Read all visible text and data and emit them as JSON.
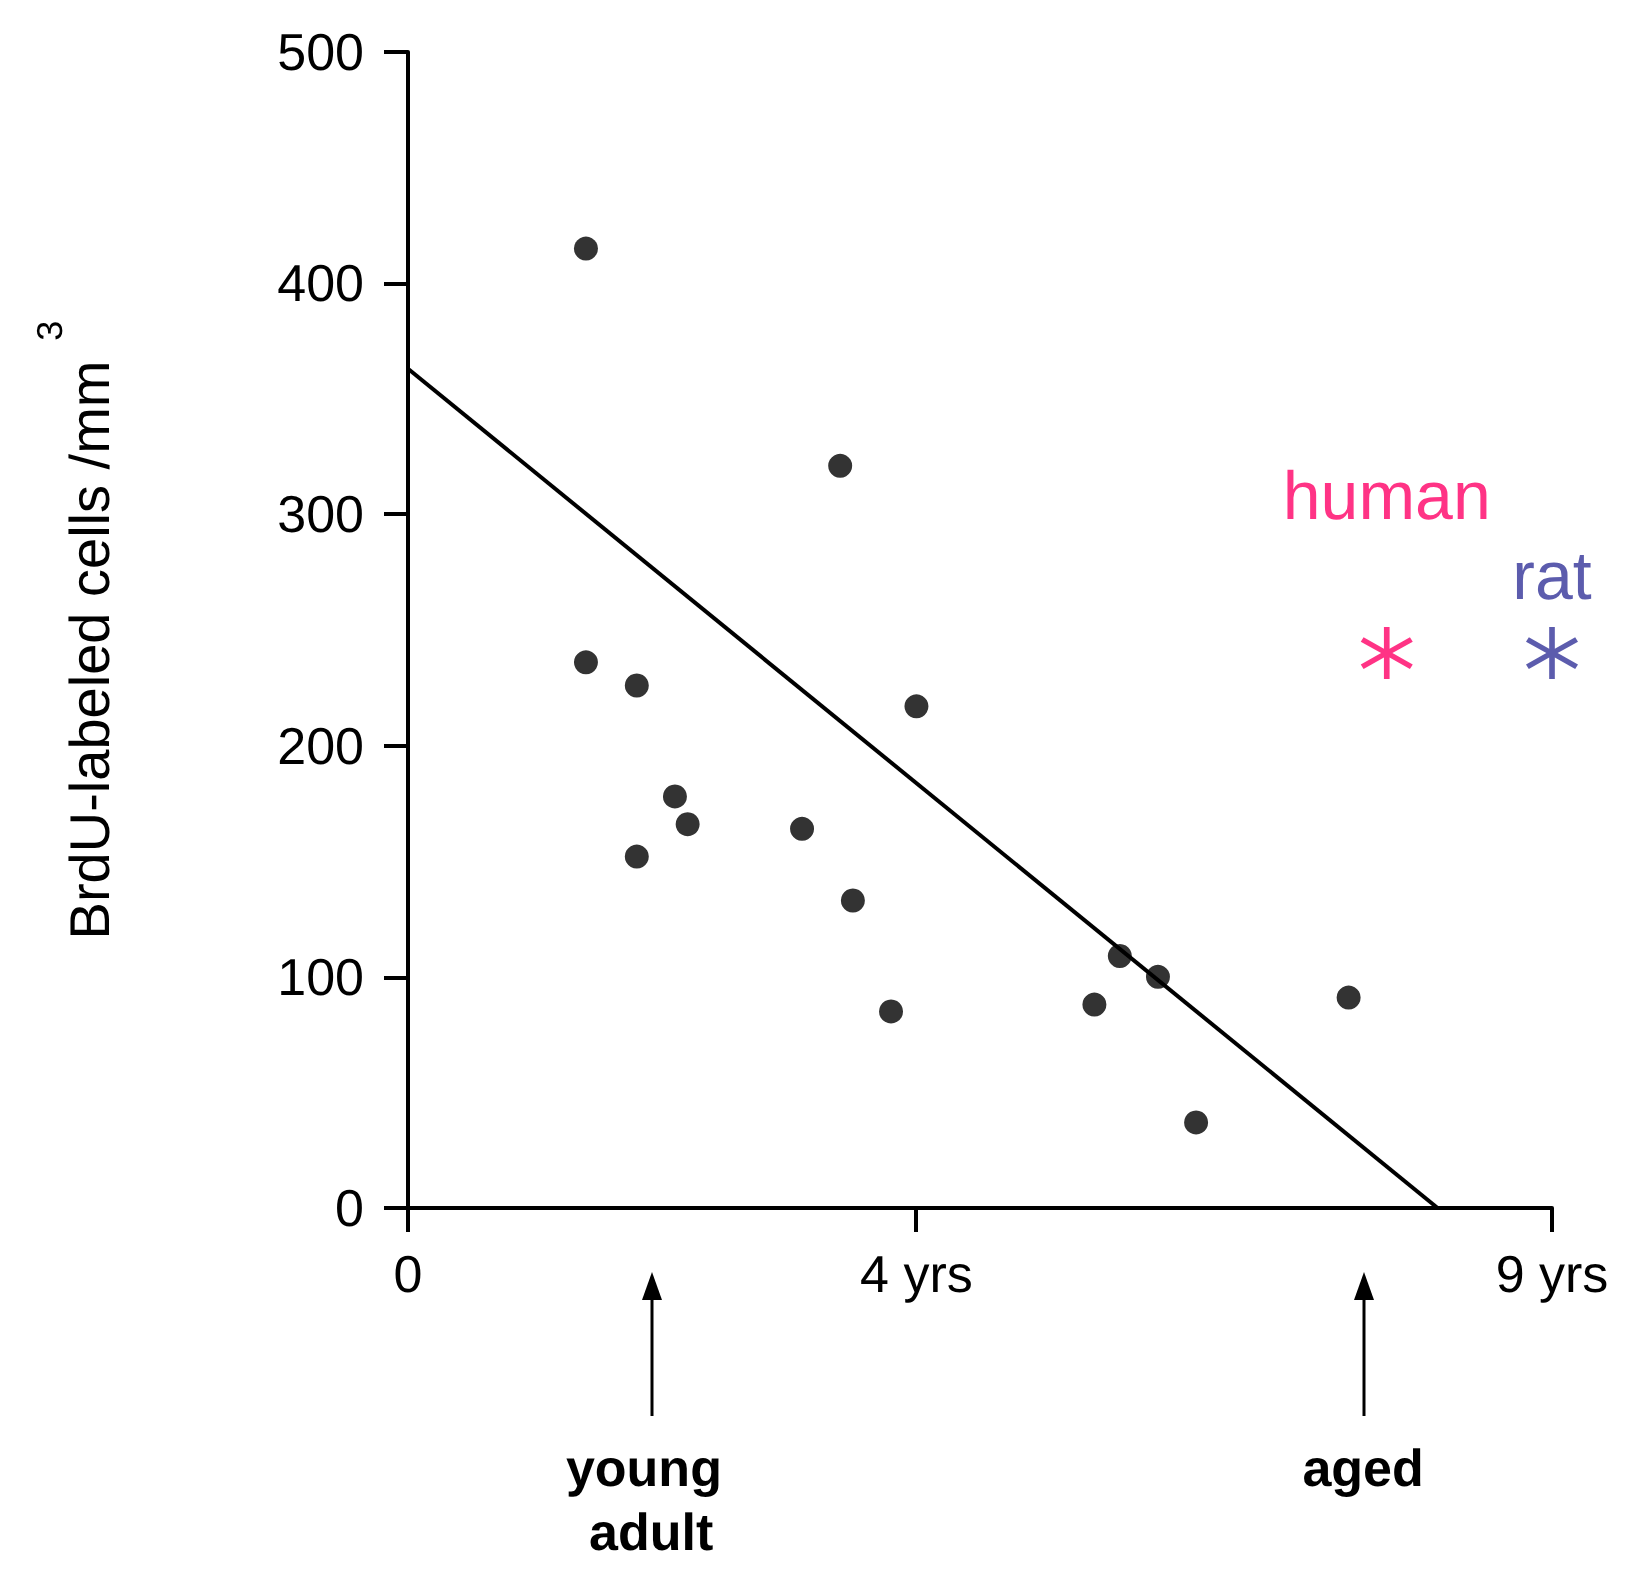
{
  "chart_data": {
    "type": "scatter",
    "ylabel": "BrdU-labeled cells /mm$^{3}$",
    "xlim": [
      0,
      9
    ],
    "xticks": [
      {
        "value": 0,
        "label": "0"
      },
      {
        "value": 4,
        "label": "4 yrs"
      },
      {
        "value": 9,
        "label": "9 yrs"
      }
    ],
    "ylim": [
      0,
      500
    ],
    "yticks": [
      0,
      100,
      200,
      300,
      400,
      500
    ],
    "grid": false,
    "legend": false,
    "marker": "circle",
    "series": [
      {
        "color": "#000000",
        "x": [
          1.4,
          1.4,
          1.8,
          1.8,
          2.1,
          2.2,
          3.1,
          3.4,
          3.5,
          3.8,
          4.0,
          5.4,
          5.6,
          5.9,
          6.2,
          7.4
        ],
        "values": [
          415,
          236,
          226,
          152,
          178,
          166,
          164,
          321,
          133,
          85,
          217,
          88,
          109,
          100,
          37,
          91
        ]
      },
      {
        "type": "line",
        "color": "#000000",
        "marker": "none",
        "x": [
          0,
          8.1
        ],
        "values": [
          363,
          0
        ]
      },
      {
        "name": "human",
        "color": "#ff0066",
        "marker": "star",
        "x": [
          7.7
        ],
        "values": [
          240
        ]
      },
      {
        "name": "rat",
        "color": "#333399",
        "marker": "star",
        "x": [
          9.0
        ],
        "values": [
          240
        ]
      }
    ],
    "annotations": [
      "young adult",
      "aged"
    ]
  }
}
